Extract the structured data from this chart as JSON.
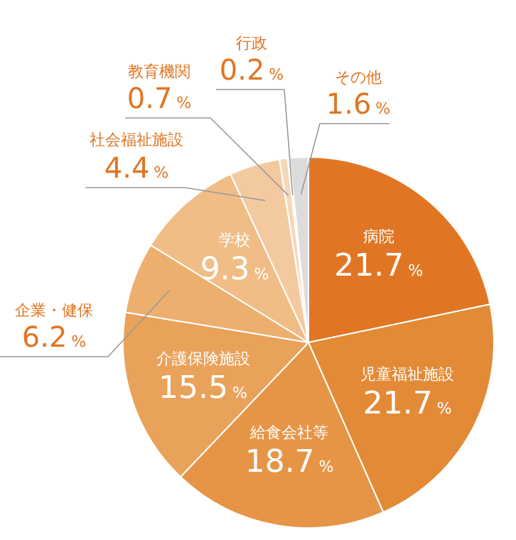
{
  "chart_data": {
    "type": "pie",
    "categories": [
      "病院",
      "児童福祉施設",
      "給食会社等",
      "介護保険施設",
      "企業・健保",
      "学校",
      "社会福祉施設",
      "教育機関",
      "行政",
      "その他"
    ],
    "values": [
      21.7,
      21.7,
      18.7,
      15.5,
      6.2,
      9.3,
      4.4,
      0.7,
      0.2,
      1.6
    ],
    "value_labels": [
      "21.7%",
      "21.7%",
      "18.7%",
      "15.5%",
      "6.2%",
      "9.3%",
      "4.4%",
      "0.7%",
      "0.2%",
      "1.6%"
    ],
    "colors": [
      "#e07624",
      "#e38a37",
      "#e69546",
      "#e9a25a",
      "#ecaf6e",
      "#f0bd86",
      "#f3caa0",
      "#f6d7b9",
      "#fae6d2",
      "#dcdcdc"
    ],
    "legend": false
  }
}
